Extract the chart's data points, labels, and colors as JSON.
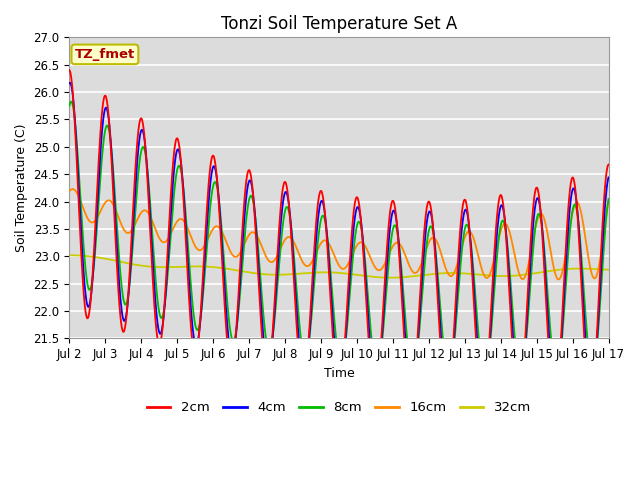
{
  "title": "Tonzi Soil Temperature Set A",
  "xlabel": "Time",
  "ylabel": "Soil Temperature (C)",
  "ylim": [
    21.5,
    27.0
  ],
  "colors": {
    "2cm": "#ff0000",
    "4cm": "#0000ff",
    "8cm": "#00bb00",
    "16cm": "#ff8800",
    "32cm": "#cccc00"
  },
  "x_tick_labels": [
    "Jul 2",
    "Jul 3",
    "Jul 4",
    "Jul 5",
    "Jul 6",
    "Jul 7",
    "Jul 8",
    "Jul 9",
    "Jul 10",
    "Jul 11",
    "Jul 12",
    "Jul 13",
    "Jul 14",
    "Jul 15",
    "Jul 16",
    "Jul 17"
  ],
  "annotation_text": "TZ_fmet",
  "annotation_color": "#aa0000",
  "annotation_bg": "#ffffcc",
  "annotation_border": "#bbbb00",
  "bg_color": "#dcdcdc",
  "title_fontsize": 12,
  "axis_fontsize": 9,
  "tick_fontsize": 8.5
}
